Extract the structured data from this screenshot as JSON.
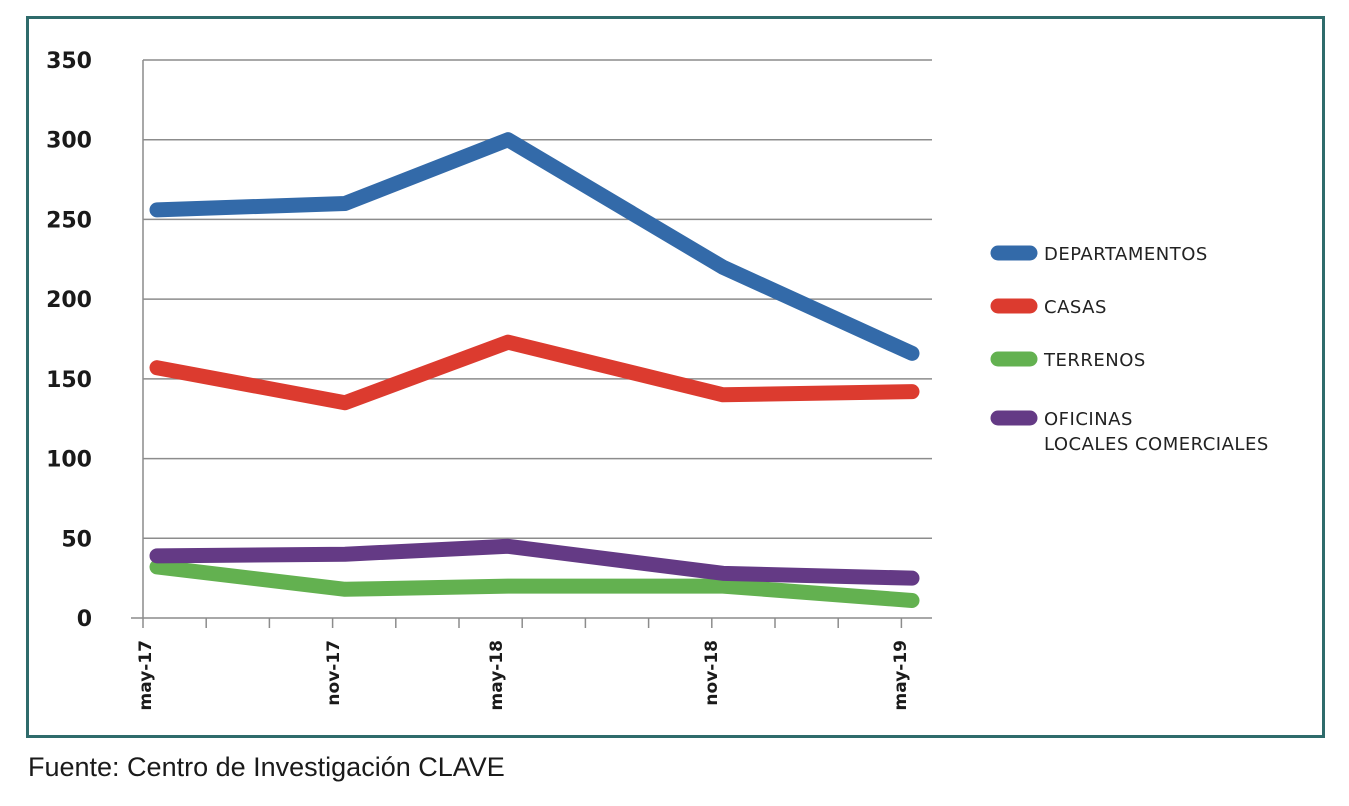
{
  "chart_data": {
    "type": "line",
    "categories": [
      "may-17",
      "nov-17",
      "may-18",
      "nov-18",
      "may-19"
    ],
    "ylim": [
      0,
      350
    ],
    "yticks": [
      "0",
      "50",
      "100",
      "150",
      "200",
      "250",
      "300",
      "350"
    ],
    "grid": true,
    "legend_position": "right",
    "series": [
      {
        "name": "DEPARTAMENTOS",
        "color": "#336aa9",
        "values": [
          256,
          260,
          300,
          220,
          166
        ]
      },
      {
        "name": "CASAS",
        "color": "#dc3b2f",
        "values": [
          157,
          135,
          173,
          140,
          142
        ]
      },
      {
        "name": "TERRENOS",
        "color": "#63b150",
        "values": [
          32,
          18,
          20,
          20,
          11
        ]
      },
      {
        "name": "OFICINAS\nLOCALES COMERCIALES",
        "color": "#643a85",
        "values": [
          39,
          40,
          45,
          28,
          25
        ]
      }
    ]
  },
  "legend": {
    "items": [
      {
        "lines": [
          "DEPARTAMENTOS"
        ]
      },
      {
        "lines": [
          "CASAS"
        ]
      },
      {
        "lines": [
          "TERRENOS"
        ]
      },
      {
        "lines": [
          "OFICINAS",
          "LOCALES COMERCIALES"
        ]
      }
    ]
  },
  "source": "Fuente: Centro de Investigación CLAVE"
}
